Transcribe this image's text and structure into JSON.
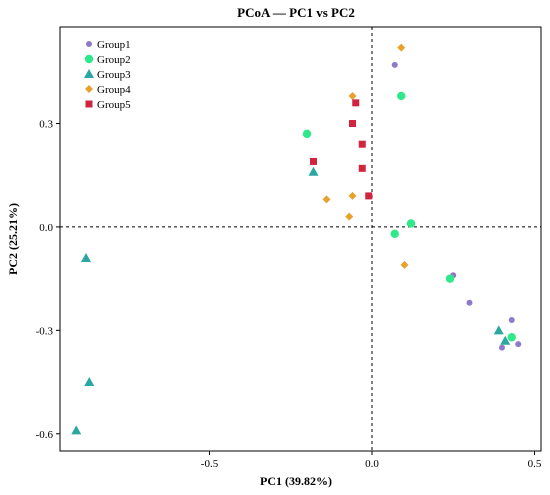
{
  "chart_data": {
    "type": "scatter",
    "title": "PCoA — PC1 vs PC2",
    "xlabel": "PC1 (39.82%)",
    "ylabel": "PC2 (25.21%)",
    "xlim": [
      -0.96,
      0.52
    ],
    "ylim": [
      -0.65,
      0.58
    ],
    "xticks": [
      -0.5,
      0.0,
      0.5
    ],
    "xtick_labels": [
      "-0.5",
      "0.0",
      "0.5"
    ],
    "yticks": [
      -0.6,
      -0.3,
      0.0,
      0.3
    ],
    "ytick_labels": [
      "-0.6",
      "-0.3",
      "0.0",
      "0.3"
    ],
    "reference_lines": {
      "x": 0.0,
      "y": 0.0,
      "style": "dotted"
    },
    "grid": false,
    "legend_position": "top-left",
    "series": [
      {
        "name": "Group1",
        "marker": "circle",
        "color": "#8F79C9",
        "points": [
          {
            "x": 0.07,
            "y": 0.47
          },
          {
            "x": 0.25,
            "y": -0.14
          },
          {
            "x": 0.3,
            "y": -0.22
          },
          {
            "x": 0.43,
            "y": -0.27
          },
          {
            "x": 0.45,
            "y": -0.34
          },
          {
            "x": 0.4,
            "y": -0.35
          }
        ]
      },
      {
        "name": "Group2",
        "marker": "circle",
        "color": "#2EE88A",
        "points": [
          {
            "x": -0.2,
            "y": 0.27
          },
          {
            "x": 0.09,
            "y": 0.38
          },
          {
            "x": 0.07,
            "y": -0.02
          },
          {
            "x": 0.12,
            "y": 0.01
          },
          {
            "x": 0.24,
            "y": -0.15
          },
          {
            "x": 0.43,
            "y": -0.32
          }
        ]
      },
      {
        "name": "Group3",
        "marker": "triangle",
        "color": "#2AA7A0",
        "points": [
          {
            "x": -0.18,
            "y": 0.16
          },
          {
            "x": -0.88,
            "y": -0.09
          },
          {
            "x": -0.87,
            "y": -0.45
          },
          {
            "x": -0.91,
            "y": -0.59
          },
          {
            "x": 0.39,
            "y": -0.3
          },
          {
            "x": 0.41,
            "y": -0.33
          }
        ]
      },
      {
        "name": "Group4",
        "marker": "diamond",
        "color": "#E8A22C",
        "points": [
          {
            "x": 0.09,
            "y": 0.52
          },
          {
            "x": -0.06,
            "y": 0.38
          },
          {
            "x": -0.14,
            "y": 0.08
          },
          {
            "x": -0.06,
            "y": 0.09
          },
          {
            "x": -0.07,
            "y": 0.03
          },
          {
            "x": 0.1,
            "y": -0.11
          }
        ]
      },
      {
        "name": "Group5",
        "marker": "square",
        "color": "#D1243F",
        "points": [
          {
            "x": -0.05,
            "y": 0.36
          },
          {
            "x": -0.06,
            "y": 0.3
          },
          {
            "x": -0.03,
            "y": 0.24
          },
          {
            "x": -0.18,
            "y": 0.19
          },
          {
            "x": -0.03,
            "y": 0.17
          },
          {
            "x": -0.01,
            "y": 0.09
          }
        ]
      }
    ]
  }
}
